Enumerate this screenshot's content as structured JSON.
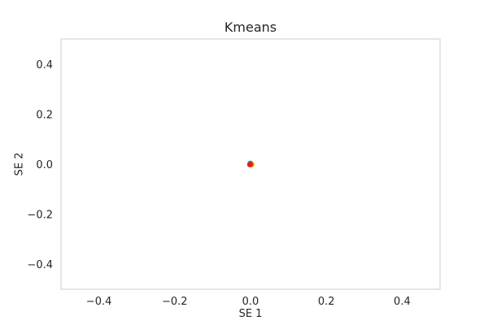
{
  "chart_data": {
    "type": "scatter",
    "title": "Kmeans",
    "xlabel": "SE 1",
    "ylabel": "SE 2",
    "xlim": [
      -0.5,
      0.5
    ],
    "ylim": [
      -0.5,
      0.5
    ],
    "xticks": [
      "−0.4",
      "−0.2",
      "0.0",
      "0.2",
      "0.4"
    ],
    "yticks": [
      "0.4",
      "0.2",
      "0.0",
      "−0.2",
      "−0.4"
    ],
    "xtick_values": [
      -0.4,
      -0.2,
      0.0,
      0.2,
      0.4
    ],
    "ytick_values": [
      0.4,
      0.2,
      0.0,
      -0.2,
      -0.4
    ],
    "grid": false,
    "legend": "none",
    "series": [
      {
        "color": "#00c8c8",
        "points": [
          [
            -0.001,
            0.004
          ]
        ]
      },
      {
        "color": "#4caf50",
        "points": [
          [
            0.001,
            0.003
          ]
        ]
      },
      {
        "color": "#e6e600",
        "points": [
          [
            0.004,
            -0.001
          ]
        ]
      },
      {
        "color": "#ff8c00",
        "points": [
          [
            0.002,
            -0.003
          ]
        ]
      },
      {
        "color": "#e02020",
        "points": [
          [
            -0.002,
            -0.002
          ],
          [
            0.0,
            0.0
          ]
        ]
      }
    ]
  }
}
